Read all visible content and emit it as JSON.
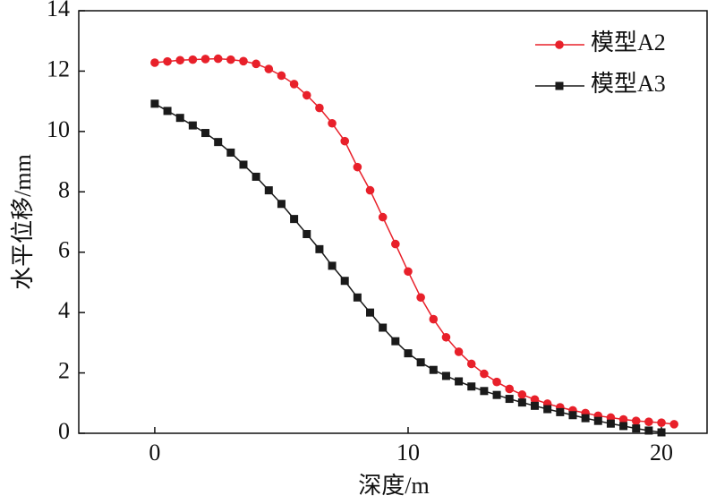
{
  "chart_data": {
    "type": "line",
    "xlabel": "深度/m",
    "ylabel": "水平位移/mm",
    "xlim": [
      -3,
      21.8
    ],
    "xticks": [
      0,
      10,
      20
    ],
    "ylim": [
      0,
      14
    ],
    "yticks": [
      0,
      2,
      4,
      6,
      8,
      10,
      12,
      14
    ],
    "legend": "upper right",
    "series": [
      {
        "name": "模型A2",
        "color": "#e8202a",
        "marker": "circle",
        "x": [
          0,
          0.5,
          1,
          1.5,
          2,
          2.5,
          3,
          3.5,
          4,
          4.5,
          5,
          5.5,
          6,
          6.5,
          7,
          7.5,
          8,
          8.5,
          9,
          9.5,
          10,
          10.5,
          11,
          11.5,
          12,
          12.5,
          13,
          13.5,
          14,
          14.5,
          15,
          15.5,
          16,
          16.5,
          17,
          17.5,
          18,
          18.5,
          19,
          19.5,
          20,
          20.5
        ],
        "values": [
          12.28,
          12.32,
          12.36,
          12.38,
          12.4,
          12.41,
          12.38,
          12.33,
          12.24,
          12.07,
          11.85,
          11.57,
          11.2,
          10.78,
          10.27,
          9.68,
          8.82,
          8.05,
          7.16,
          6.27,
          5.36,
          4.5,
          3.78,
          3.18,
          2.7,
          2.3,
          1.97,
          1.7,
          1.47,
          1.28,
          1.12,
          0.98,
          0.86,
          0.76,
          0.67,
          0.58,
          0.52,
          0.46,
          0.41,
          0.38,
          0.35,
          0.3
        ]
      },
      {
        "name": "模型A3",
        "color": "#1a1a1a",
        "marker": "square",
        "x": [
          0,
          0.5,
          1,
          1.5,
          2,
          2.5,
          3,
          3.5,
          4,
          4.5,
          5,
          5.5,
          6,
          6.5,
          7,
          7.5,
          8,
          8.5,
          9,
          9.5,
          10,
          10.5,
          11,
          11.5,
          12,
          12.5,
          13,
          13.5,
          14,
          14.5,
          15,
          15.5,
          16,
          16.5,
          17,
          17.5,
          18,
          18.5,
          19,
          19.5,
          20
        ],
        "values": [
          10.92,
          10.68,
          10.45,
          10.2,
          9.95,
          9.65,
          9.3,
          8.9,
          8.5,
          8.05,
          7.6,
          7.1,
          6.6,
          6.1,
          5.55,
          5.05,
          4.5,
          4.0,
          3.5,
          3.05,
          2.65,
          2.35,
          2.1,
          1.9,
          1.72,
          1.55,
          1.4,
          1.27,
          1.14,
          1.02,
          0.91,
          0.8,
          0.7,
          0.6,
          0.5,
          0.41,
          0.32,
          0.24,
          0.16,
          0.09,
          0.03
        ]
      }
    ]
  }
}
